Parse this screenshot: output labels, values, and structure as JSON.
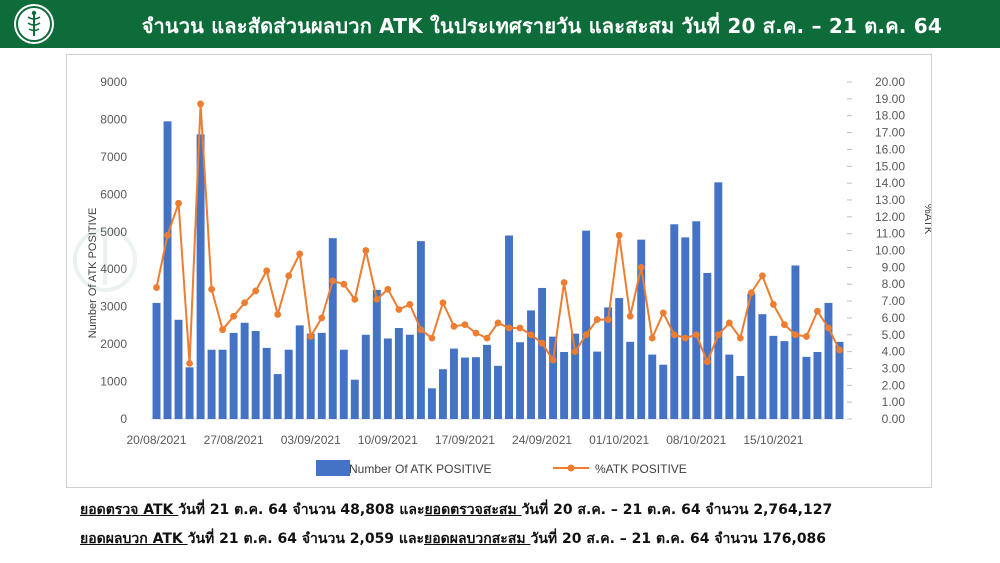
{
  "header": {
    "title": "จำนวน และสัดส่วนผลบวก ATK ในประเทศรายวัน และสะสม วันที่ 20 ส.ค. – 21 ต.ค. 64",
    "bg_color": "#0e6b3a"
  },
  "summary": {
    "line1_label": "ยอดตรวจ ATK ",
    "line1_text1": "วันที่ 21 ต.ค. 64 จำนวน 48,808 และ",
    "line1_label2": "ยอดตรวจสะสม ",
    "line1_text2": "วันที่ 20 ส.ค. – 21 ต.ค. 64 จำนวน 2,764,127",
    "line2_label": "ยอดผลบวก ATK ",
    "line2_text1": "วันที่ 21 ต.ค. 64 จำนวน 2,059 และ",
    "line2_label2": "ยอดผลบวกสะสม ",
    "line2_text2": "วันที่ 20 ส.ค. – 21 ต.ค. 64 จำนวน 176,086"
  },
  "chart_data": {
    "type": "bar",
    "title": "",
    "ylabel": "Number Of ATK POSITIVE",
    "y2label": "%ATK",
    "ylim": [
      0,
      9000
    ],
    "y2lim": [
      0,
      20
    ],
    "yticks": [
      "0",
      "1000",
      "2000",
      "3000",
      "4000",
      "5000",
      "6000",
      "7000",
      "8000",
      "9000"
    ],
    "y2ticks": [
      "0.00",
      "1.00",
      "2.00",
      "3.00",
      "4.00",
      "5.00",
      "6.00",
      "7.00",
      "8.00",
      "9.00",
      "10.00",
      "11.00",
      "12.00",
      "13.00",
      "14.00",
      "15.00",
      "16.00",
      "17.00",
      "18.00",
      "19.00",
      "20.00"
    ],
    "x_tick_labels": [
      "20/08/2021",
      "27/08/2021",
      "03/09/2021",
      "10/09/2021",
      "17/09/2021",
      "24/09/2021",
      "01/10/2021",
      "08/10/2021",
      "15/10/2021"
    ],
    "x_tick_every": 7,
    "legend": "bottom-center",
    "bar_color": "#4472c4",
    "line_color": "#ed7d31",
    "series": [
      {
        "name": "Number Of ATK POSITIVE",
        "type": "bar",
        "axis": "left",
        "values": [
          3100,
          7950,
          2650,
          1380,
          7600,
          1850,
          1850,
          2300,
          2570,
          2350,
          1900,
          1200,
          1850,
          2500,
          2280,
          2300,
          4830,
          1850,
          1050,
          2250,
          3450,
          2150,
          2430,
          2250,
          4750,
          820,
          1330,
          1880,
          1640,
          1650,
          1980,
          1420,
          4900,
          2050,
          2900,
          3500,
          2200,
          1790,
          2280,
          5030,
          1800,
          2980,
          3230,
          2060,
          4790,
          1720,
          1450,
          5200,
          4850,
          5280,
          3900,
          6320,
          1720,
          1150,
          3350,
          2800,
          2220,
          2080,
          4100,
          1660,
          1790,
          3100,
          2059
        ]
      },
      {
        "name": "%ATK POSITIVE",
        "type": "line",
        "axis": "right",
        "values": [
          7.8,
          10.9,
          12.8,
          3.3,
          18.7,
          7.7,
          5.3,
          6.1,
          6.9,
          7.6,
          8.8,
          6.2,
          8.5,
          9.8,
          4.9,
          6.0,
          8.2,
          8.0,
          7.1,
          10.0,
          7.1,
          7.7,
          6.5,
          6.8,
          5.3,
          4.8,
          6.9,
          5.5,
          5.6,
          5.1,
          4.8,
          5.7,
          5.4,
          5.4,
          5.0,
          4.5,
          3.5,
          8.1,
          4.0,
          5.0,
          5.9,
          5.9,
          10.9,
          6.1,
          9.0,
          4.8,
          6.3,
          5.0,
          4.8,
          5.0,
          3.4,
          5.0,
          5.7,
          4.8,
          7.5,
          8.5,
          6.8,
          5.6,
          5.0,
          4.9,
          6.4,
          5.4,
          4.1
        ]
      }
    ]
  }
}
